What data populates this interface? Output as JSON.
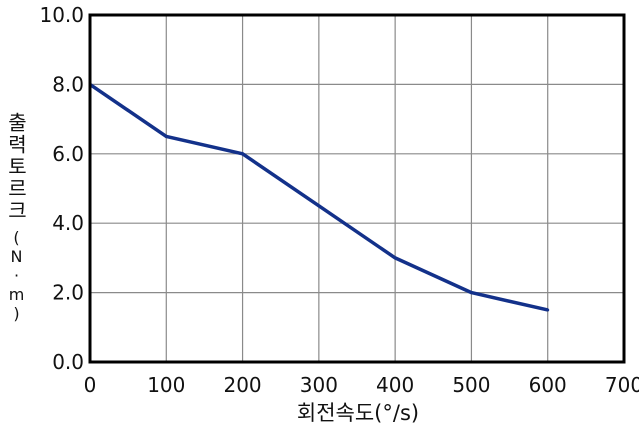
{
  "chart_data": {
    "type": "line",
    "title": "",
    "xlabel": "회전속도(°/s)",
    "ylabel": "출력토르크",
    "ylabel_unit": "(N·m)",
    "xlim": [
      0,
      700
    ],
    "ylim": [
      0,
      10
    ],
    "xticks": [
      "0",
      "100",
      "200",
      "300",
      "400",
      "500",
      "600",
      "700"
    ],
    "yticks": [
      "0.0",
      "2.0",
      "4.0",
      "6.0",
      "8.0",
      "10.0"
    ],
    "grid": true,
    "line_color": "#13318a",
    "series": [
      {
        "x": [
          0,
          100,
          200,
          300,
          400,
          500,
          600
        ],
        "y": [
          8.0,
          6.5,
          6.0,
          4.5,
          3.0,
          2.0,
          1.5
        ]
      }
    ]
  }
}
